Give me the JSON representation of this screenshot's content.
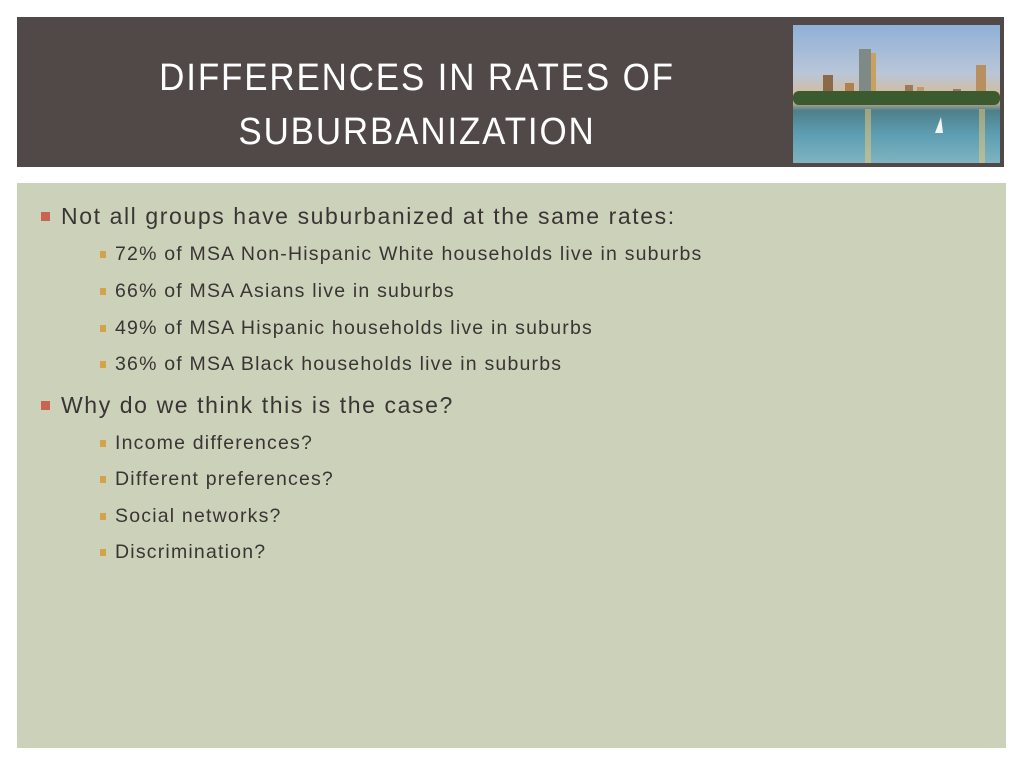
{
  "slide": {
    "title_line1": "DIFFERENCES IN RATES OF",
    "title_line2": "SUBURBANIZATION",
    "colors": {
      "header_bg": "#514848",
      "body_bg": "#ccd1b9",
      "bullet_l1": "#c8644f",
      "bullet_l2": "#d4a24b"
    },
    "bullets": [
      {
        "text": "Not all groups have suburbanized at the same rates:",
        "sub": [
          "72% of MSA Non-Hispanic White households live in suburbs",
          "66% of MSA Asians live in suburbs",
          "49% of MSA Hispanic households live in suburbs",
          "36% of MSA Black households live in suburbs"
        ]
      },
      {
        "text": "Why do we think this is the case?",
        "sub": [
          "Income differences?",
          "Different preferences?",
          "Social networks?",
          "Discrimination?"
        ]
      }
    ]
  }
}
